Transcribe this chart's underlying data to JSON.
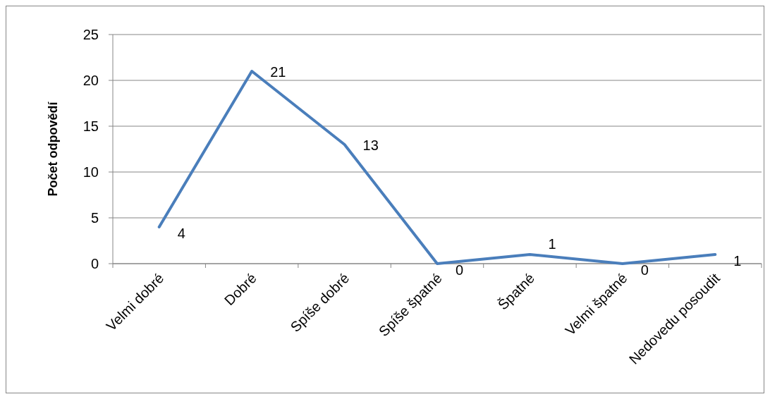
{
  "chart_data": {
    "type": "line",
    "ylabel": "Počet odpovědí",
    "categories": [
      "Velmi dobré",
      "Dobré",
      "Spíše dobré",
      "Spíše špatné",
      "Špatné",
      "Velmi špatné",
      "Nedovedu posoudit"
    ],
    "series": [
      {
        "color": "#4a7ebb",
        "values": [
          4,
          21,
          13,
          0,
          1,
          0,
          1
        ]
      }
    ],
    "ylim": [
      0,
      25
    ],
    "yticks": [
      0,
      5,
      10,
      15,
      20,
      25
    ],
    "grid": "y",
    "data_labels": true,
    "marker": "none"
  }
}
